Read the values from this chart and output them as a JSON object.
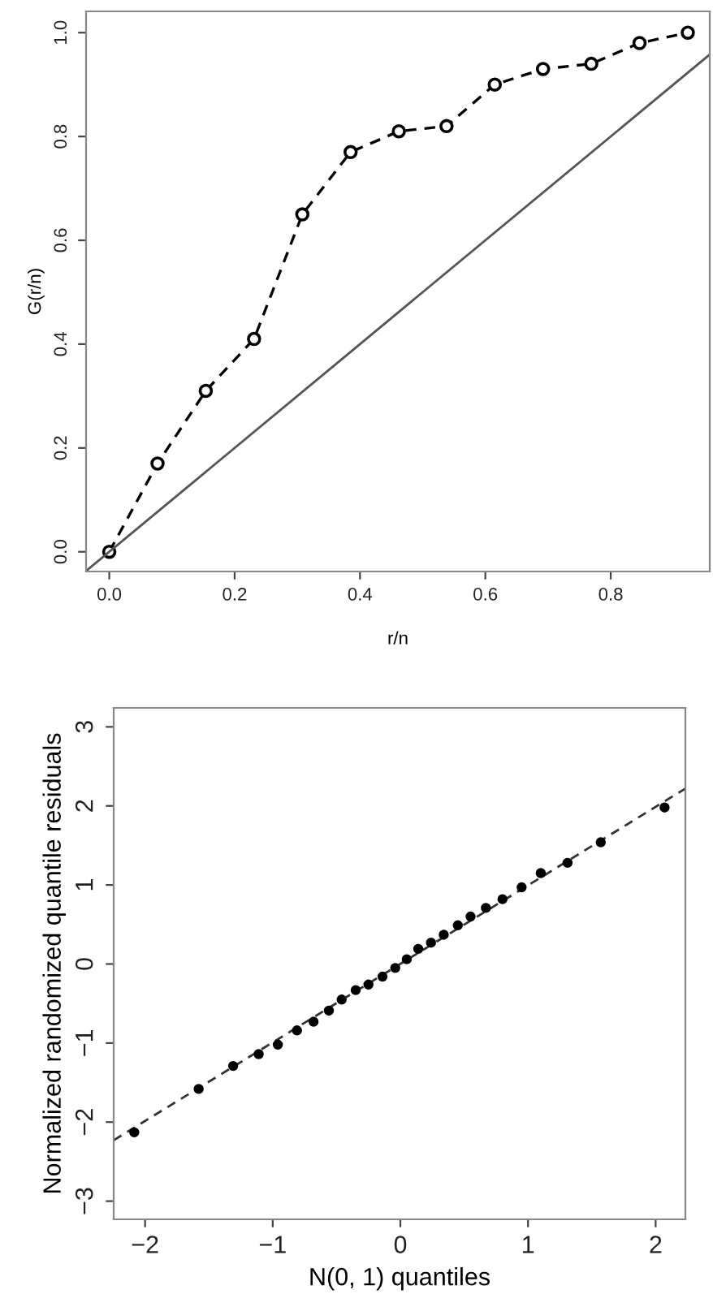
{
  "chart_data": [
    {
      "type": "line",
      "xlabel": "r/n",
      "ylabel": "G(r/n)",
      "grid": false,
      "legend": false,
      "xlim": [
        -0.037,
        0.958
      ],
      "ylim": [
        -0.038,
        1.041
      ],
      "xticks": [
        {
          "value": 0,
          "label": "0.0"
        },
        {
          "value": 0.2,
          "label": "0.2"
        },
        {
          "value": 0.4,
          "label": "0.4"
        },
        {
          "value": 0.6,
          "label": "0.6"
        },
        {
          "value": 0.8,
          "label": "0.8"
        }
      ],
      "yticks": [
        {
          "value": 0,
          "label": "0.0"
        },
        {
          "value": 0.2,
          "label": "0.2"
        },
        {
          "value": 0.4,
          "label": "0.4"
        },
        {
          "value": 0.6,
          "label": "0.6"
        },
        {
          "value": 0.8,
          "label": "0.8"
        },
        {
          "value": 1,
          "label": "1.0"
        }
      ],
      "series": [
        {
          "color": "#000000",
          "marker": "circle",
          "line_style": "dashed",
          "x": [
            0,
            0.077,
            0.154,
            0.231,
            0.308,
            0.385,
            0.462,
            0.538,
            0.615,
            0.692,
            0.769,
            0.846,
            0.923
          ],
          "values": [
            0,
            0.17,
            0.31,
            0.41,
            0.65,
            0.77,
            0.81,
            0.82,
            0.9,
            0.93,
            0.94,
            0.98,
            1.0
          ]
        },
        {
          "color": "#555555",
          "marker": "none",
          "line_style": "solid",
          "x": [
            -0.037,
            0.958
          ],
          "values": [
            -0.037,
            0.958
          ]
        }
      ]
    },
    {
      "type": "scatter",
      "xlabel": "N(0, 1) quantiles",
      "ylabel": "Normalized randomized quantile residuals",
      "grid": false,
      "legend": false,
      "xlim": [
        -2.246,
        2.233
      ],
      "ylim": [
        -3.23,
        3.24
      ],
      "xticks": [
        {
          "value": -2,
          "label": "−2"
        },
        {
          "value": -1,
          "label": "−1"
        },
        0,
        1,
        2
      ],
      "yticks": [
        {
          "value": -3,
          "label": "−3"
        },
        {
          "value": -2,
          "label": "−2"
        },
        {
          "value": -1,
          "label": "−1"
        },
        0,
        1,
        2,
        3
      ],
      "series": [
        {
          "color": "#000000",
          "marker": "circle",
          "x": [
            -2.085,
            -1.58,
            -1.31,
            -1.11,
            -0.96,
            -0.81,
            -0.68,
            -0.56,
            -0.46,
            -0.35,
            -0.25,
            -0.14,
            -0.04,
            0.05,
            0.14,
            0.24,
            0.34,
            0.45,
            0.55,
            0.67,
            0.8,
            0.95,
            1.1,
            1.31,
            1.57,
            2.07
          ],
          "values": [
            -2.13,
            -1.58,
            -1.29,
            -1.14,
            -1.02,
            -0.84,
            -0.73,
            -0.59,
            -0.45,
            -0.33,
            -0.26,
            -0.16,
            -0.05,
            0.06,
            0.19,
            0.27,
            0.37,
            0.49,
            0.6,
            0.71,
            0.82,
            0.97,
            1.15,
            1.28,
            1.54,
            1.98
          ]
        },
        {
          "type": "line",
          "color": "#333333",
          "marker": "none",
          "line_style": "dashed",
          "x": [
            -2.246,
            2.233
          ],
          "values": [
            -2.23,
            2.22
          ]
        }
      ]
    }
  ]
}
